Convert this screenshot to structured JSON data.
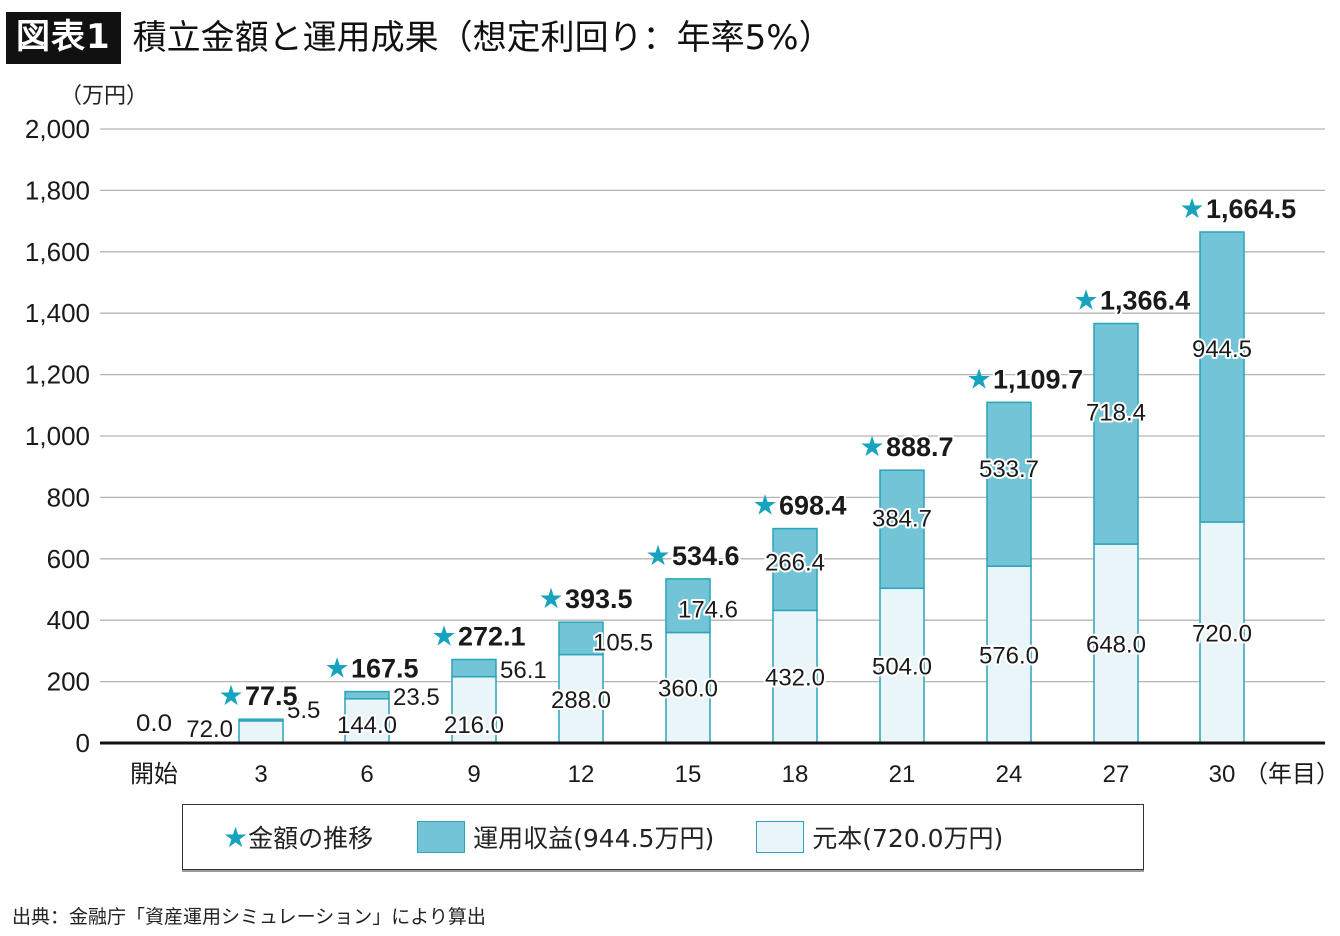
{
  "header": {
    "badge": "図表1",
    "title": "積立金額と運用成果（想定利回り：年率5%）"
  },
  "colors": {
    "gain": "#72c4d6",
    "principal": "#e9f5f8",
    "bar_border": "#2aa4b9",
    "star": "#16a3bd",
    "grid": "#b5b5b5",
    "axis": "#111111"
  },
  "chart_data": {
    "type": "bar",
    "stacked": true,
    "title": "積立金額と運用成果（想定利回り：年率5%）",
    "ylabel": "（万円）",
    "xlabel": "（年目）",
    "ylim": [
      0,
      2000
    ],
    "yticks": [
      0,
      200,
      400,
      600,
      800,
      1000,
      1200,
      1400,
      1600,
      1800,
      2000
    ],
    "ytick_labels": [
      "0",
      "200",
      "400",
      "600",
      "800",
      "1,000",
      "1,200",
      "1,400",
      "1,600",
      "1,800",
      "2,000"
    ],
    "grid": true,
    "categories": [
      "開始",
      "3",
      "6",
      "9",
      "12",
      "15",
      "18",
      "21",
      "24",
      "27",
      "30"
    ],
    "series": [
      {
        "name": "元本(720.0万円)",
        "key": "principal",
        "values": [
          0.0,
          72.0,
          144.0,
          216.0,
          288.0,
          360.0,
          432.0,
          504.0,
          576.0,
          648.0,
          720.0
        ],
        "labels": [
          "",
          "72.0",
          "144.0",
          "216.0",
          "288.0",
          "360.0",
          "432.0",
          "504.0",
          "576.0",
          "648.0",
          "720.0"
        ]
      },
      {
        "name": "運用収益(944.5万円)",
        "key": "gain",
        "values": [
          0.0,
          5.5,
          23.5,
          56.1,
          105.5,
          174.6,
          266.4,
          384.7,
          533.7,
          718.4,
          944.5
        ],
        "labels": [
          "",
          "5.5",
          "23.5",
          "56.1",
          "105.5",
          "174.6",
          "266.4",
          "384.7",
          "533.7",
          "718.4",
          "944.5"
        ]
      }
    ],
    "totals": {
      "name": "金額の推移",
      "values": [
        0.0,
        77.5,
        167.5,
        272.1,
        393.5,
        534.6,
        698.4,
        888.7,
        1109.7,
        1366.4,
        1664.5
      ],
      "labels": [
        "0.0",
        "77.5",
        "167.5",
        "272.1",
        "393.5",
        "534.6",
        "698.4",
        "888.7",
        "1,109.7",
        "1,366.4",
        "1,664.5"
      ]
    },
    "legend": {
      "position": "bottom",
      "entries": [
        "★金額の推移",
        "運用収益(944.5万円)",
        "元本(720.0万円)"
      ]
    }
  },
  "legend": {
    "star_symbol": "★",
    "total_label": "金額の推移",
    "gain_label": "運用収益(944.5万円)",
    "principal_label": "元本(720.0万円)"
  },
  "source": "出典：金融庁「資産運用シミュレーション」により算出"
}
